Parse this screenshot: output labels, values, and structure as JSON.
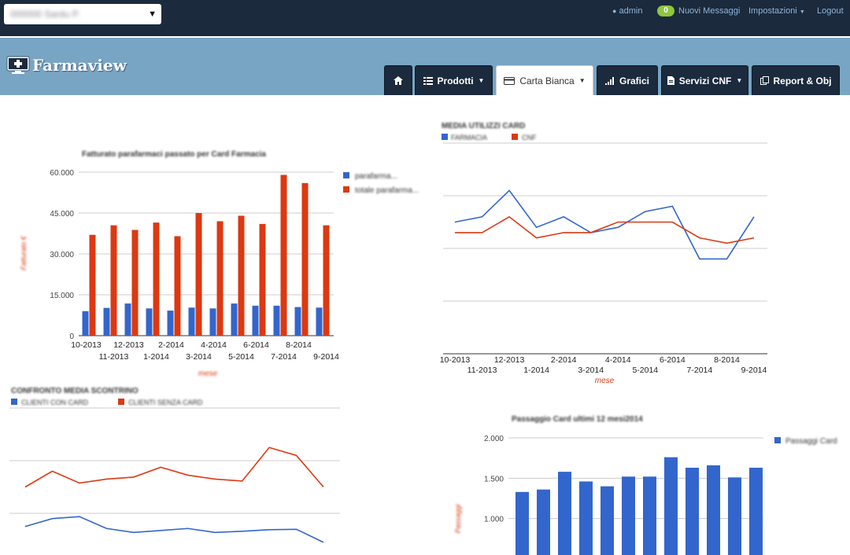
{
  "topbar": {
    "store_value": "000000 Sardu P.",
    "user": "admin",
    "messages_count": "0",
    "messages_label": "Nuovi Messaggi",
    "settings_label": "Impostazioni",
    "logout_label": "Logout"
  },
  "brand": {
    "name": "Farmaview"
  },
  "tabs": [
    {
      "label": "",
      "icon": "home-icon"
    },
    {
      "label": "Prodotti",
      "icon": "grid-icon"
    },
    {
      "label": "Carta Bianca",
      "icon": "card-icon"
    },
    {
      "label": "Grafici",
      "icon": "signal-icon"
    },
    {
      "label": "Servizi CNF",
      "icon": "document-icon"
    },
    {
      "label": "Report & Obj",
      "icon": "copy-icon"
    }
  ],
  "colors": {
    "blue": "#3366cc",
    "red": "#dc3912",
    "nav": "#1b2a3d",
    "band": "#78a5c4"
  },
  "chart_data": [
    {
      "type": "bar",
      "title": "Fatturato parafarmaci passato per Card Farmacia",
      "ylabel": "Fatturato €",
      "xlabel": "mese",
      "ylim": [
        0,
        60000
      ],
      "yticks": [
        "0",
        "15.000",
        "30.000",
        "45.000",
        "60.000"
      ],
      "categories": [
        "10-2013",
        "11-2013",
        "12-2013",
        "1-2014",
        "2-2014",
        "3-2014",
        "4-2014",
        "5-2014",
        "6-2014",
        "7-2014",
        "8-2014",
        "9-2014"
      ],
      "legend": [
        "parafarma...",
        "totale parafarma..."
      ],
      "series": [
        {
          "values": [
            9000,
            10200,
            11800,
            10000,
            9200,
            10300,
            10000,
            11800,
            11000,
            11000,
            10500,
            10300
          ]
        },
        {
          "values": [
            37000,
            40500,
            38800,
            41500,
            36500,
            45000,
            42000,
            44000,
            41000,
            59000,
            56000,
            40500
          ]
        }
      ]
    },
    {
      "type": "line",
      "title": "MEDIA UTILIZZI CARD",
      "xlabel": "mese",
      "categories": [
        "10-2013",
        "11-2013",
        "12-2013",
        "1-2014",
        "2-2014",
        "3-2014",
        "4-2014",
        "5-2014",
        "6-2014",
        "7-2014",
        "8-2014",
        "9-2014"
      ],
      "legend": [
        "FARMACIA",
        "CNF"
      ],
      "ylim": [
        0,
        4
      ],
      "series": [
        {
          "values": [
            2.5,
            2.6,
            3.1,
            2.4,
            2.6,
            2.3,
            2.4,
            2.7,
            2.8,
            1.8,
            1.8,
            2.6
          ]
        },
        {
          "values": [
            2.3,
            2.3,
            2.6,
            2.2,
            2.3,
            2.3,
            2.5,
            2.5,
            2.5,
            2.2,
            2.1,
            2.2
          ]
        }
      ]
    },
    {
      "type": "line",
      "title": "CONFRONTO MEDIA SCONTRINO",
      "legend": [
        "CLIENTI CON CARD",
        "CLIENTI SENZA CARD"
      ],
      "ylim": [
        0,
        4
      ],
      "series": [
        {
          "values": [
            1.0,
            1.2,
            1.25,
            0.95,
            0.85,
            0.9,
            0.95,
            0.85,
            0.88,
            0.92,
            0.93,
            0.6
          ]
        },
        {
          "values": [
            2.0,
            2.4,
            2.1,
            2.2,
            2.25,
            2.5,
            2.3,
            2.2,
            2.15,
            3.0,
            2.8,
            2.0
          ]
        }
      ]
    },
    {
      "type": "bar",
      "title": "Passaggio Card ultimi 12 mesi2014",
      "ylabel": "Passaggi",
      "yticks": [
        "1.000",
        "1.500",
        "2.000"
      ],
      "ylim": [
        500,
        2000
      ],
      "legend": [
        "Passaggi Card"
      ],
      "series": [
        {
          "values": [
            1330,
            1360,
            1580,
            1460,
            1400,
            1520,
            1520,
            1760,
            1630,
            1660,
            1510,
            1630
          ]
        }
      ]
    }
  ]
}
